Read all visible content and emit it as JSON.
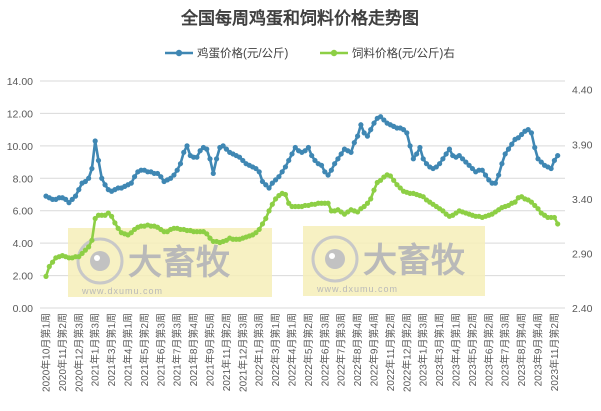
{
  "chart_data": {
    "type": "line",
    "title": "全国每周鸡蛋和饲料价格走势图",
    "grid": true,
    "legend_placement": "top",
    "watermark": {
      "logo_text": "大畜牧",
      "url": "www.dxumu.com"
    },
    "y_left": {
      "ylim": [
        0,
        14
      ],
      "ticks": [
        "0.00",
        "2.00",
        "4.00",
        "6.00",
        "8.00",
        "10.00",
        "12.00",
        "14.00"
      ]
    },
    "y_right": {
      "ylim": [
        2.4,
        4.48
      ],
      "ticks": [
        "2.40",
        "2.90",
        "3.40",
        "3.90",
        "4.40"
      ]
    },
    "x_tick_labels": [
      "2020年10月第1周",
      "2020年11月第2周",
      "2020年12月第3周",
      "2021年1月第3周",
      "2021年3月第1周",
      "2021年4月第1周",
      "2021年5月第2周",
      "2021年6月第3周",
      "2021年7月第3周",
      "2021年8月第4周",
      "2021年9月第5周",
      "2021年11月第2周",
      "2021年12月第3周",
      "2022年1月第3周",
      "2022年3月第1周",
      "2022年4月第1周",
      "2022年5月第2周",
      "2022年6月第3周",
      "2022年7月第3周",
      "2022年8月第4周",
      "2022年9月第4周",
      "2022年11月第2周",
      "2022年12月第2周",
      "2023年1月第3周",
      "2023年3月第1周",
      "2023年4月第1周",
      "2023年5月第2周",
      "2023年6月第2周",
      "2023年7月第3周",
      "2023年8月第4周",
      "2023年9月第4周",
      "2023年11月第2周"
    ],
    "x_tick_every": 5,
    "series": [
      {
        "name": "鸡蛋价格(元/公斤)",
        "axis": "left",
        "color": "#3f87b3",
        "values": [
          6.9,
          6.8,
          6.7,
          6.7,
          6.8,
          6.8,
          6.7,
          6.5,
          6.7,
          6.9,
          7.3,
          7.7,
          7.8,
          8.0,
          8.6,
          10.3,
          9.1,
          8.0,
          7.6,
          7.3,
          7.2,
          7.3,
          7.4,
          7.4,
          7.5,
          7.6,
          7.7,
          8.1,
          8.4,
          8.5,
          8.5,
          8.4,
          8.4,
          8.3,
          8.3,
          8.1,
          7.8,
          7.9,
          8.0,
          8.2,
          8.5,
          8.9,
          9.6,
          10.0,
          9.4,
          9.3,
          9.3,
          9.7,
          9.9,
          9.8,
          9.2,
          8.3,
          9.2,
          9.9,
          10.0,
          9.8,
          9.6,
          9.5,
          9.4,
          9.3,
          9.1,
          8.9,
          8.8,
          8.7,
          8.6,
          8.4,
          7.8,
          7.6,
          7.4,
          7.7,
          7.9,
          8.1,
          8.4,
          8.7,
          9.1,
          9.5,
          9.9,
          9.7,
          9.6,
          9.7,
          9.9,
          9.4,
          9.1,
          8.9,
          8.8,
          8.4,
          8.2,
          8.5,
          8.9,
          9.2,
          9.5,
          9.8,
          9.7,
          9.6,
          10.2,
          10.6,
          11.3,
          10.8,
          10.6,
          11.0,
          11.4,
          11.7,
          11.8,
          11.6,
          11.4,
          11.3,
          11.2,
          11.1,
          11.1,
          11.0,
          10.8,
          10.0,
          9.2,
          9.5,
          9.9,
          9.2,
          8.9,
          8.7,
          8.6,
          8.7,
          8.9,
          9.2,
          9.5,
          9.8,
          9.4,
          9.3,
          9.4,
          9.2,
          9.0,
          8.8,
          8.6,
          8.4,
          8.5,
          8.5,
          8.2,
          7.9,
          7.7,
          7.7,
          8.2,
          8.9,
          9.5,
          9.8,
          10.1,
          10.4,
          10.5,
          10.7,
          10.9,
          11.0,
          10.8,
          9.9,
          9.2,
          9.0,
          8.8,
          8.7,
          8.6,
          9.1,
          9.4
        ]
      },
      {
        "name": "饲料价格(元/公斤)右",
        "axis": "right",
        "color": "#8dcf45",
        "values": [
          2.69,
          2.78,
          2.82,
          2.86,
          2.87,
          2.88,
          2.87,
          2.86,
          2.86,
          2.87,
          2.87,
          2.9,
          2.93,
          2.96,
          3.02,
          3.22,
          3.25,
          3.25,
          3.25,
          3.27,
          3.24,
          3.18,
          3.13,
          3.09,
          3.08,
          3.07,
          3.09,
          3.12,
          3.14,
          3.15,
          3.15,
          3.16,
          3.15,
          3.15,
          3.14,
          3.12,
          3.1,
          3.1,
          3.12,
          3.13,
          3.13,
          3.12,
          3.12,
          3.11,
          3.11,
          3.1,
          3.1,
          3.1,
          3.1,
          3.08,
          3.04,
          3.01,
          3.01,
          3.0,
          3.01,
          3.02,
          3.04,
          3.03,
          3.03,
          3.03,
          3.04,
          3.05,
          3.06,
          3.07,
          3.09,
          3.12,
          3.17,
          3.22,
          3.29,
          3.35,
          3.4,
          3.43,
          3.45,
          3.44,
          3.36,
          3.33,
          3.33,
          3.33,
          3.33,
          3.34,
          3.34,
          3.35,
          3.35,
          3.36,
          3.36,
          3.36,
          3.36,
          3.29,
          3.29,
          3.3,
          3.28,
          3.26,
          3.28,
          3.3,
          3.29,
          3.28,
          3.31,
          3.33,
          3.36,
          3.4,
          3.48,
          3.55,
          3.57,
          3.6,
          3.62,
          3.61,
          3.57,
          3.53,
          3.5,
          3.47,
          3.46,
          3.45,
          3.45,
          3.44,
          3.43,
          3.42,
          3.39,
          3.37,
          3.35,
          3.33,
          3.31,
          3.29,
          3.26,
          3.24,
          3.25,
          3.27,
          3.29,
          3.28,
          3.27,
          3.26,
          3.25,
          3.24,
          3.24,
          3.23,
          3.24,
          3.25,
          3.26,
          3.28,
          3.3,
          3.32,
          3.33,
          3.34,
          3.36,
          3.37,
          3.41,
          3.42,
          3.4,
          3.39,
          3.37,
          3.34,
          3.31,
          3.27,
          3.25,
          3.23,
          3.23,
          3.23,
          3.17
        ]
      }
    ]
  }
}
